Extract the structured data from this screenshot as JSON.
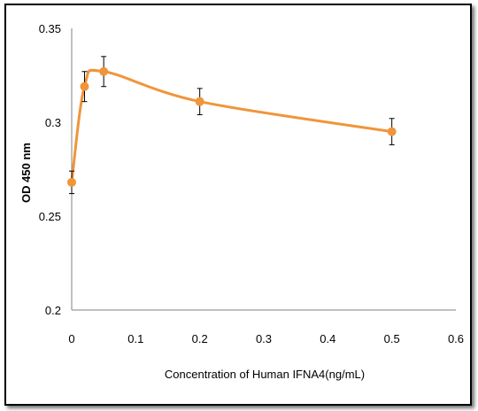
{
  "chart_data": {
    "type": "scatter",
    "title": "",
    "xlabel": "Concentration of Human IFNA4(ng/mL)",
    "ylabel": "OD 450 nm",
    "xlim": [
      0,
      0.6
    ],
    "ylim": [
      0.2,
      0.35
    ],
    "x_ticks": [
      "0",
      "0.1",
      "0.2",
      "0.3",
      "0.4",
      "0.5",
      "0.6"
    ],
    "y_ticks": [
      "0.2",
      "0.25",
      "0.3",
      "0.35"
    ],
    "grid": false,
    "legend": "none",
    "line_style": "smooth",
    "series": [
      {
        "color": "#F0953A",
        "x": [
          0,
          0.02,
          0.05,
          0.2,
          0.5
        ],
        "y": [
          0.268,
          0.319,
          0.327,
          0.311,
          0.295
        ],
        "error": [
          0.006,
          0.008,
          0.008,
          0.007,
          0.007
        ]
      }
    ]
  }
}
